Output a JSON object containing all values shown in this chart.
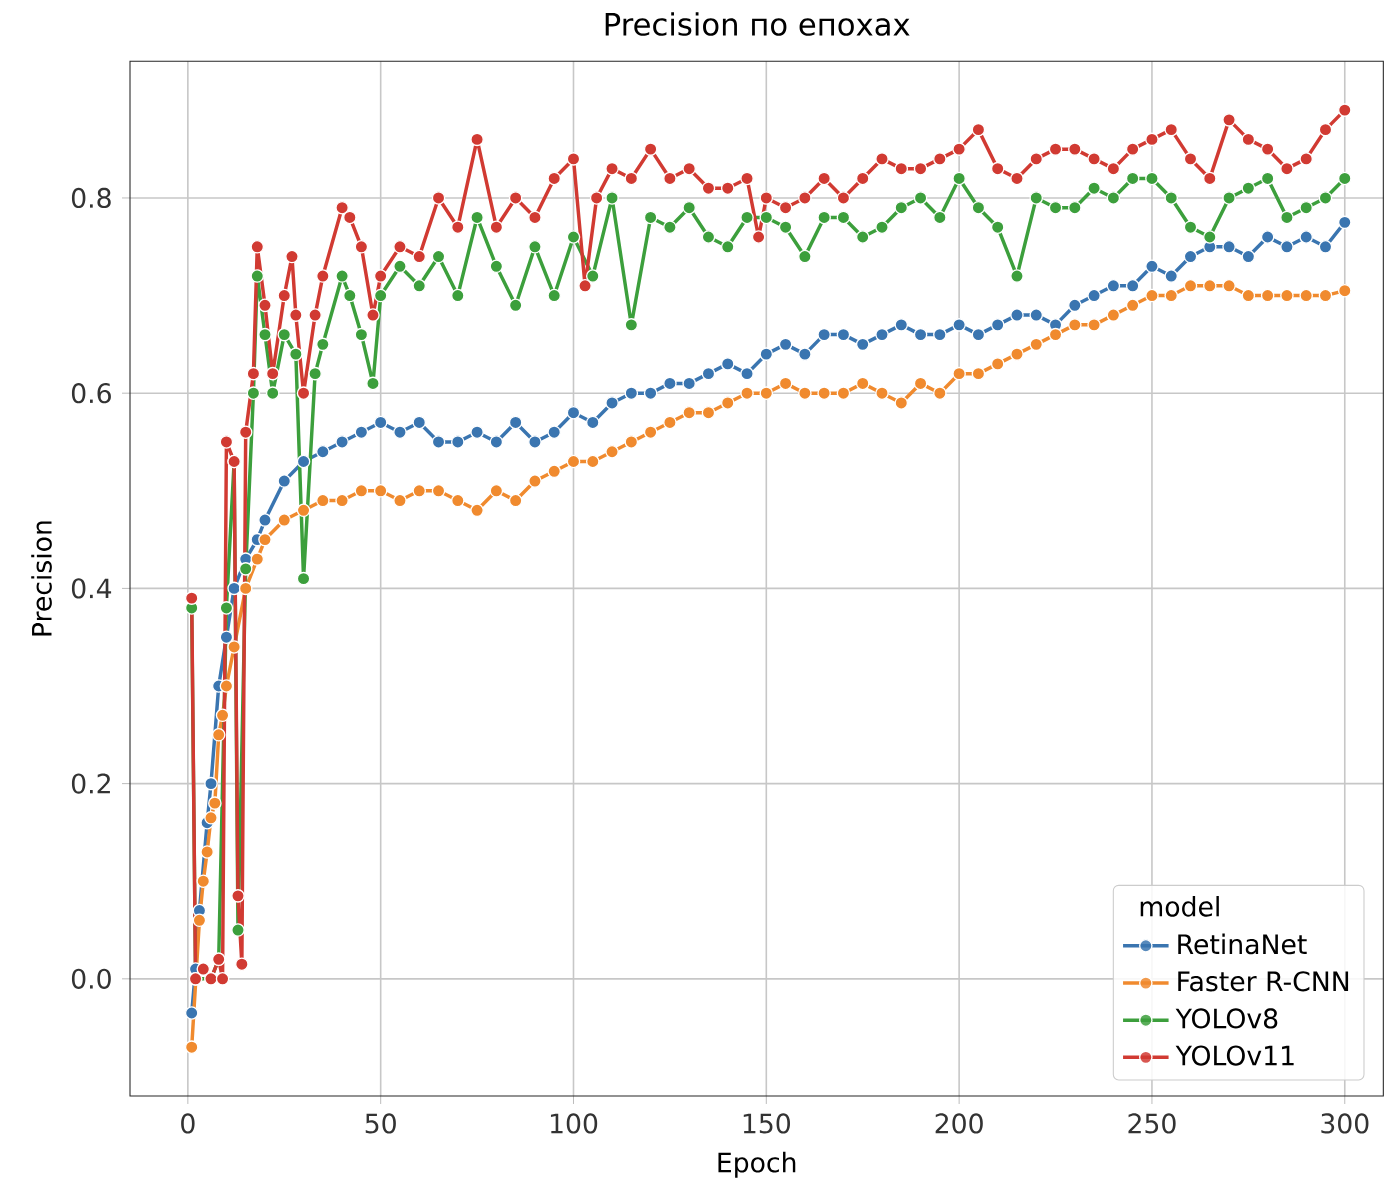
{
  "chart_data": {
    "type": "line",
    "title": "Precision по епохах",
    "xlabel": "Epoch",
    "ylabel": "Precision",
    "legend_title": "model",
    "xlim": [
      -15,
      310
    ],
    "ylim": [
      -0.12,
      0.94
    ],
    "xticks": [
      0,
      50,
      100,
      150,
      200,
      250,
      300
    ],
    "yticks": [
      {
        "value": 0,
        "label": "0.0"
      },
      0.2,
      0.4,
      0.6,
      0.8
    ],
    "grid": true,
    "legend": "bottom right",
    "marker": "circle",
    "line_style": "solid",
    "series": [
      {
        "name": "RetinaNet",
        "color": "#3a75b0",
        "x": [
          1,
          2,
          3,
          5,
          6,
          8,
          10,
          12,
          15,
          18,
          20,
          25,
          30,
          35,
          40,
          45,
          50,
          55,
          60,
          65,
          70,
          75,
          80,
          85,
          90,
          95,
          100,
          105,
          110,
          115,
          120,
          125,
          130,
          135,
          140,
          145,
          150,
          155,
          160,
          165,
          170,
          175,
          180,
          185,
          190,
          195,
          200,
          205,
          210,
          215,
          220,
          225,
          230,
          235,
          240,
          245,
          250,
          255,
          260,
          265,
          270,
          275,
          280,
          285,
          290,
          295,
          300
        ],
        "values": [
          -0.035,
          0.01,
          0.07,
          0.16,
          0.2,
          0.3,
          0.35,
          0.4,
          0.43,
          0.45,
          0.47,
          0.51,
          0.53,
          0.54,
          0.55,
          0.56,
          0.57,
          0.56,
          0.57,
          0.55,
          0.55,
          0.56,
          0.55,
          0.57,
          0.55,
          0.56,
          0.58,
          0.57,
          0.59,
          0.6,
          0.6,
          0.61,
          0.61,
          0.62,
          0.63,
          0.62,
          0.64,
          0.65,
          0.64,
          0.66,
          0.66,
          0.65,
          0.66,
          0.67,
          0.66,
          0.66,
          0.67,
          0.66,
          0.67,
          0.68,
          0.68,
          0.67,
          0.69,
          0.7,
          0.71,
          0.71,
          0.73,
          0.72,
          0.74,
          0.75,
          0.75,
          0.74,
          0.76,
          0.75,
          0.76,
          0.75,
          0.775
        ]
      },
      {
        "name": "Faster R-CNN",
        "color": "#f08a2e",
        "x": [
          1,
          3,
          4,
          5,
          6,
          7,
          8,
          9,
          10,
          12,
          15,
          18,
          20,
          25,
          30,
          35,
          40,
          45,
          50,
          55,
          60,
          65,
          70,
          75,
          80,
          85,
          90,
          95,
          100,
          105,
          110,
          115,
          120,
          125,
          130,
          135,
          140,
          145,
          150,
          155,
          160,
          165,
          170,
          175,
          180,
          185,
          190,
          195,
          200,
          205,
          210,
          215,
          220,
          225,
          230,
          235,
          240,
          245,
          250,
          255,
          260,
          265,
          270,
          275,
          280,
          285,
          290,
          295,
          300
        ],
        "values": [
          -0.07,
          0.06,
          0.1,
          0.13,
          0.165,
          0.18,
          0.25,
          0.27,
          0.3,
          0.34,
          0.4,
          0.43,
          0.45,
          0.47,
          0.48,
          0.49,
          0.49,
          0.5,
          0.5,
          0.49,
          0.5,
          0.5,
          0.49,
          0.48,
          0.5,
          0.49,
          0.51,
          0.52,
          0.53,
          0.53,
          0.54,
          0.55,
          0.56,
          0.57,
          0.58,
          0.58,
          0.59,
          0.6,
          0.6,
          0.61,
          0.6,
          0.6,
          0.6,
          0.61,
          0.6,
          0.59,
          0.61,
          0.6,
          0.62,
          0.62,
          0.63,
          0.64,
          0.65,
          0.66,
          0.67,
          0.67,
          0.68,
          0.69,
          0.7,
          0.7,
          0.71,
          0.71,
          0.71,
          0.7,
          0.7,
          0.7,
          0.7,
          0.7,
          0.705
        ]
      },
      {
        "name": "YOLOv8",
        "color": "#3c9f3c",
        "x": [
          1,
          2,
          4,
          6,
          8,
          10,
          12,
          13,
          15,
          17,
          18,
          20,
          22,
          25,
          28,
          30,
          33,
          35,
          40,
          42,
          45,
          48,
          50,
          55,
          60,
          65,
          70,
          75,
          80,
          85,
          90,
          95,
          100,
          105,
          110,
          115,
          120,
          125,
          130,
          135,
          140,
          145,
          150,
          155,
          160,
          165,
          170,
          175,
          180,
          185,
          190,
          195,
          200,
          205,
          210,
          215,
          220,
          225,
          230,
          235,
          240,
          245,
          250,
          255,
          260,
          265,
          270,
          275,
          280,
          285,
          290,
          295,
          300
        ],
        "values": [
          0.38,
          0.0,
          null,
          0.0,
          0.02,
          0.38,
          0.53,
          0.05,
          0.42,
          0.6,
          0.72,
          0.66,
          0.6,
          0.66,
          0.64,
          0.41,
          0.62,
          0.65,
          0.72,
          0.7,
          0.66,
          0.61,
          0.7,
          0.73,
          0.71,
          0.74,
          0.7,
          0.78,
          0.73,
          0.69,
          0.75,
          0.7,
          0.76,
          0.72,
          0.8,
          0.67,
          0.78,
          0.77,
          0.79,
          0.76,
          0.75,
          0.78,
          0.78,
          0.77,
          0.74,
          0.78,
          0.78,
          0.76,
          0.77,
          0.79,
          0.8,
          0.78,
          0.82,
          0.79,
          0.77,
          0.72,
          0.8,
          0.79,
          0.79,
          0.81,
          0.8,
          0.82,
          0.82,
          0.8,
          0.77,
          0.76,
          0.8,
          0.81,
          0.82,
          0.78,
          0.79,
          0.8,
          0.82
        ]
      },
      {
        "name": "YOLOv11",
        "color": "#d13a32",
        "x": [
          1,
          2,
          4,
          6,
          8,
          9,
          10,
          12,
          13,
          14,
          15,
          17,
          18,
          20,
          22,
          25,
          27,
          28,
          30,
          33,
          35,
          40,
          42,
          45,
          48,
          50,
          55,
          60,
          65,
          70,
          75,
          80,
          85,
          90,
          95,
          100,
          103,
          106,
          110,
          115,
          120,
          125,
          130,
          135,
          140,
          145,
          148,
          150,
          155,
          160,
          165,
          170,
          175,
          180,
          185,
          190,
          195,
          200,
          205,
          210,
          215,
          220,
          225,
          230,
          235,
          240,
          245,
          250,
          255,
          260,
          265,
          270,
          275,
          280,
          285,
          290,
          295,
          300
        ],
        "values": [
          0.39,
          0.0,
          0.01,
          0.0,
          0.02,
          0.0,
          0.55,
          0.53,
          0.085,
          0.015,
          0.56,
          0.62,
          0.75,
          0.69,
          0.62,
          0.7,
          0.74,
          0.68,
          0.6,
          0.68,
          0.72,
          0.79,
          0.78,
          0.75,
          0.68,
          0.72,
          0.75,
          0.74,
          0.8,
          0.77,
          0.86,
          0.77,
          0.8,
          0.78,
          0.82,
          0.84,
          0.71,
          0.8,
          0.83,
          0.82,
          0.85,
          0.82,
          0.83,
          0.81,
          0.81,
          0.82,
          0.76,
          0.8,
          0.79,
          0.8,
          0.82,
          0.8,
          0.82,
          0.84,
          0.83,
          0.83,
          0.84,
          0.85,
          0.87,
          0.83,
          0.82,
          0.84,
          0.85,
          0.85,
          0.84,
          0.83,
          0.85,
          0.86,
          0.87,
          0.84,
          0.82,
          0.88,
          0.86,
          0.85,
          0.83,
          0.84,
          0.87,
          0.89
        ]
      }
    ]
  }
}
